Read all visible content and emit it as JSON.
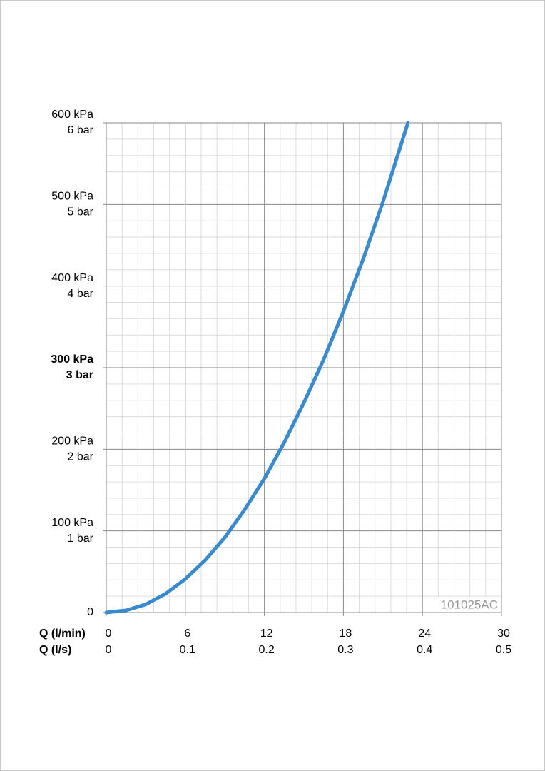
{
  "chart_data": {
    "type": "line",
    "x": [
      0,
      1.5,
      3,
      4.5,
      6,
      7.5,
      9,
      10.5,
      12,
      13.5,
      15,
      16.5,
      18,
      19.5,
      21,
      22.9
    ],
    "series": [
      {
        "color": "#3a8ad0",
        "values": [
          0,
          2.6,
          10,
          23,
          41,
          64,
          92,
          126,
          164,
          208,
          257,
          310,
          369,
          433,
          503,
          600
        ]
      }
    ],
    "xlabel": "Q (l/min)",
    "xlim": [
      0,
      30
    ],
    "xticks": [
      0,
      6,
      12,
      18,
      24,
      30
    ],
    "x2label": "Q (l/s)",
    "x2lim": [
      0,
      0.5
    ],
    "x2ticks": [
      0,
      0.1,
      0.2,
      0.3,
      0.4,
      0.5
    ],
    "ylim": [
      0,
      600
    ],
    "yticks": [
      0,
      {
        "value": 100,
        "label": "100 kPa"
      },
      {
        "value": 200,
        "label": "200 kPa"
      },
      {
        "value": 300,
        "label": "300 kPa"
      },
      {
        "value": 400,
        "label": "400 kPa"
      },
      {
        "value": 500,
        "label": "500 kPa"
      },
      {
        "value": 600,
        "label": "600 kPa"
      }
    ],
    "y2lim": [
      0,
      6
    ],
    "y2ticks": [
      {
        "value": 1,
        "label": "1 bar"
      },
      {
        "value": 2,
        "label": "2 bar"
      },
      {
        "value": 3,
        "label": "3 bar"
      },
      {
        "value": 4,
        "label": "4 bar"
      },
      {
        "value": 5,
        "label": "5 bar"
      },
      {
        "value": 6,
        "label": "6 bar"
      }
    ],
    "bold_ytick": 300,
    "minor_divisions": 5,
    "grid": true,
    "annotation": "101025AC"
  }
}
